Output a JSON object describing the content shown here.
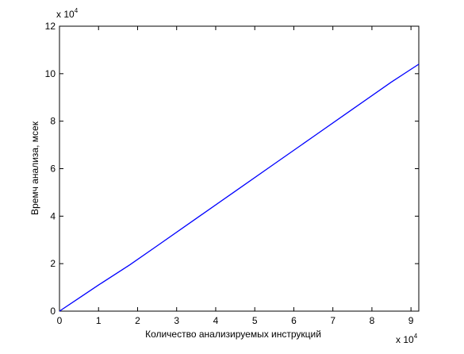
{
  "chart_data": {
    "type": "line",
    "xlabel": "Количество анализируемых инструкций",
    "ylabel": "Времч анализа, мсек",
    "x_multiplier": {
      "base": "x 10",
      "exponent": "4"
    },
    "y_multiplier": {
      "base": "x 10",
      "exponent": "4"
    },
    "xlim": [
      0,
      92000
    ],
    "ylim": [
      0,
      120000
    ],
    "x_ticks": [
      0,
      10000,
      20000,
      30000,
      40000,
      50000,
      60000,
      70000,
      80000,
      90000
    ],
    "x_tick_labels": [
      "0",
      "1",
      "2",
      "3",
      "4",
      "5",
      "6",
      "7",
      "8",
      "9"
    ],
    "y_ticks": [
      0,
      20000,
      40000,
      60000,
      80000,
      100000,
      120000
    ],
    "y_tick_labels": [
      "0",
      "2",
      "4",
      "6",
      "8",
      "10",
      "12"
    ],
    "grid": false,
    "series": [
      {
        "color": "#0000ff",
        "x": [
          0,
          5000,
          10000,
          18000,
          25000,
          35000,
          45000,
          55000,
          65000,
          75000,
          85000,
          92000
        ],
        "y": [
          0,
          5500,
          11000,
          19500,
          27500,
          39000,
          50500,
          62000,
          73500,
          85000,
          96500,
          104000
        ]
      }
    ]
  }
}
